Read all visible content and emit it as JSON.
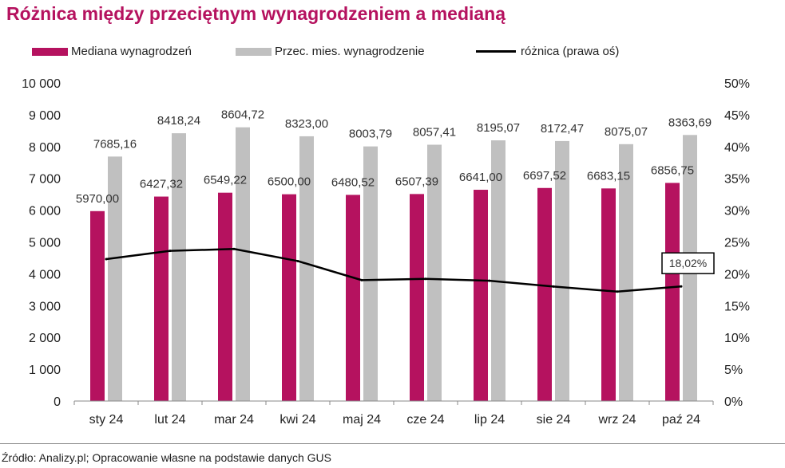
{
  "title": "Różnica między przeciętnym wynagrodzeniem a medianą",
  "source": "Źródło: Analizy.pl; Opracowanie własne na podstawie danych GUS",
  "colors": {
    "median": "#b5125f",
    "average": "#c0c0c0",
    "diff": "#000000",
    "title": "#b5125f"
  },
  "chart_data": {
    "type": "bar",
    "categories": [
      "sty 24",
      "lut 24",
      "mar 24",
      "kwi 24",
      "maj 24",
      "cze 24",
      "lip 24",
      "sie 24",
      "wrz 24",
      "paź 24"
    ],
    "series": [
      {
        "name": "Mediana wynagrodzeń",
        "type": "bar",
        "axis": "left",
        "values": [
          5970.0,
          6427.32,
          6549.22,
          6500.0,
          6480.52,
          6507.39,
          6641.0,
          6697.52,
          6683.15,
          6856.75
        ],
        "labels": [
          "5970,00",
          "6427,32",
          "6549,22",
          "6500,00",
          "6480,52",
          "6507,39",
          "6641,00",
          "6697,52",
          "6683,15",
          "6856,75"
        ]
      },
      {
        "name": "Przec. mies. wynagrodzenie",
        "type": "bar",
        "axis": "left",
        "values": [
          7685.16,
          8418.24,
          8604.72,
          8323.0,
          8003.79,
          8057.41,
          8195.07,
          8172.47,
          8075.07,
          8363.69
        ],
        "labels": [
          "7685,16",
          "8418,24",
          "8604,72",
          "8323,00",
          "8003,79",
          "8057,41",
          "8195,07",
          "8172,47",
          "8075,07",
          "8363,69"
        ]
      },
      {
        "name": "różnica (prawa oś)",
        "type": "line",
        "axis": "right",
        "values": [
          22.3,
          23.6,
          23.9,
          22.0,
          19.0,
          19.2,
          18.9,
          18.0,
          17.2,
          18.02
        ]
      }
    ],
    "annotation": "18,02%",
    "ylim_left": [
      0,
      10000
    ],
    "yticks_left": [
      "0",
      "1 000",
      "2 000",
      "3 000",
      "4 000",
      "5 000",
      "6 000",
      "7 000",
      "8 000",
      "9 000",
      "10 000"
    ],
    "ylim_right": [
      0,
      50
    ],
    "yticks_right": [
      "0%",
      "5%",
      "10%",
      "15%",
      "20%",
      "25%",
      "30%",
      "35%",
      "40%",
      "45%",
      "50%"
    ],
    "legend_position": "top",
    "grid": false
  }
}
